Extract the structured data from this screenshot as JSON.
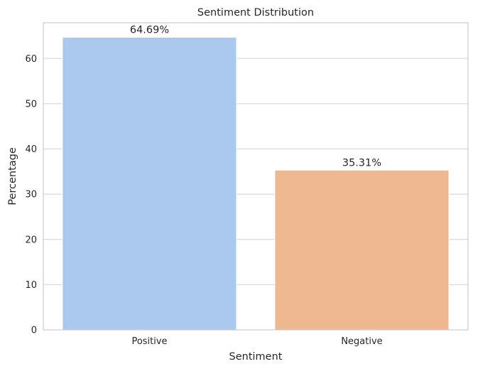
{
  "chart_data": {
    "type": "bar",
    "title": "Sentiment Distribution",
    "xlabel": "Sentiment",
    "ylabel": "Percentage",
    "categories": [
      "Positive",
      "Negative"
    ],
    "values": [
      64.69,
      35.31
    ],
    "data_labels": [
      "64.69%",
      "35.31%"
    ],
    "colors": [
      "#abc9ee",
      "#f0b891"
    ],
    "ylim": [
      0,
      67.9
    ],
    "yticks": [
      0,
      10,
      20,
      30,
      40,
      50,
      60
    ],
    "ytick_labels": [
      "0",
      "10",
      "20",
      "30",
      "40",
      "50",
      "60"
    ],
    "grid": "horizontal",
    "legend": "none"
  }
}
